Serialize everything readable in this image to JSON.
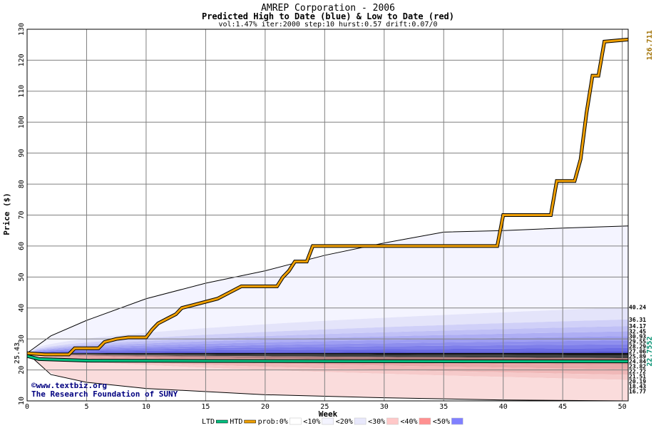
{
  "chart_data": {
    "type": "area",
    "title": "AMREP Corporation - 2006",
    "subtitle": "Predicted High to Date (blue) &  Low to Date (red)",
    "params": "vol:1.47% iter:2000 step:10 hurst:0.57 drift:0.07/0",
    "xlabel": "Week",
    "ylabel": "Price ($)",
    "xlim": [
      0,
      50.5
    ],
    "ylim": [
      10,
      130
    ],
    "x_ticks": [
      0,
      5,
      10,
      15,
      20,
      25,
      30,
      35,
      40,
      45,
      50
    ],
    "y_ticks": [
      10,
      20,
      30,
      40,
      50,
      60,
      70,
      80,
      90,
      100,
      110,
      120,
      130
    ],
    "grid": true,
    "start_price": 25.43,
    "start_label": "25.43",
    "final_high_label": "126.711",
    "final_low_label": "22.7552",
    "right_labels": [
      "40.24",
      "36.31",
      "34.17",
      "32.45",
      "30.93",
      "29.55",
      "28.29",
      "27.06",
      "25.89",
      "24.84",
      "23.82",
      "22.72",
      "21.51",
      "20.19",
      "18.43",
      "16.77"
    ],
    "right_values": [
      40.24,
      36.31,
      34.17,
      32.45,
      30.93,
      29.55,
      28.29,
      27.06,
      25.89,
      24.84,
      23.82,
      22.72,
      21.51,
      20.19,
      18.43,
      16.77
    ],
    "outer_upper": [
      [
        0,
        25.43
      ],
      [
        2,
        31
      ],
      [
        5,
        36
      ],
      [
        10,
        43
      ],
      [
        15,
        48
      ],
      [
        20,
        52
      ],
      [
        25,
        57
      ],
      [
        30,
        61
      ],
      [
        35,
        64.5
      ],
      [
        40,
        65
      ],
      [
        45,
        65.8
      ],
      [
        50.5,
        66.5
      ]
    ],
    "outer_lower": [
      [
        0,
        25.43
      ],
      [
        2,
        18.5
      ],
      [
        5,
        16
      ],
      [
        10,
        14
      ],
      [
        20,
        12
      ],
      [
        30,
        11
      ],
      [
        40,
        10.3
      ],
      [
        50.5,
        10
      ]
    ],
    "htd": [
      [
        0,
        25.4
      ],
      [
        1.5,
        25
      ],
      [
        3.5,
        25
      ],
      [
        4,
        27
      ],
      [
        6,
        27
      ],
      [
        6.5,
        29
      ],
      [
        7.5,
        30
      ],
      [
        8.5,
        30.5
      ],
      [
        10,
        30.5
      ],
      [
        10.5,
        33
      ],
      [
        11,
        35
      ],
      [
        12,
        37
      ],
      [
        12.5,
        38
      ],
      [
        13,
        40
      ],
      [
        14,
        41
      ],
      [
        15,
        42
      ],
      [
        16,
        43
      ],
      [
        17,
        45
      ],
      [
        18,
        47
      ],
      [
        19,
        47
      ],
      [
        21,
        47
      ],
      [
        21.5,
        50
      ],
      [
        22,
        52
      ],
      [
        22.5,
        55
      ],
      [
        23.5,
        55
      ],
      [
        24,
        60
      ],
      [
        30,
        60
      ],
      [
        39.5,
        60
      ],
      [
        40,
        70
      ],
      [
        44,
        70
      ],
      [
        44.5,
        81
      ],
      [
        46,
        81
      ],
      [
        46.5,
        88
      ],
      [
        47,
        103
      ],
      [
        47.5,
        115
      ],
      [
        48,
        115
      ],
      [
        48.5,
        126
      ],
      [
        50.5,
        126.7
      ]
    ],
    "ltd": [
      [
        0,
        24.5
      ],
      [
        1,
        23.5
      ],
      [
        5,
        23
      ],
      [
        15,
        22.9
      ],
      [
        30,
        22.8
      ],
      [
        50.5,
        22.76
      ]
    ],
    "legend": [
      {
        "label": "LTD",
        "color": "#00c080"
      },
      {
        "label": "HTD",
        "color": "#f0a000"
      },
      {
        "label": "prob:0%",
        "color": "#ffffff"
      },
      {
        "label": "<10%",
        "color": "#f4f4ff"
      },
      {
        "label": "<20%",
        "color": "#e8e8fb"
      },
      {
        "label": "<30%",
        "color": "#ffc8c8"
      },
      {
        "label": "<40%",
        "color": "#ff9090"
      },
      {
        "label": "<50%",
        "color": "#8080ff"
      }
    ],
    "credit": [
      "©www.textbiz.org",
      "The Research Foundation of SUNY"
    ]
  }
}
